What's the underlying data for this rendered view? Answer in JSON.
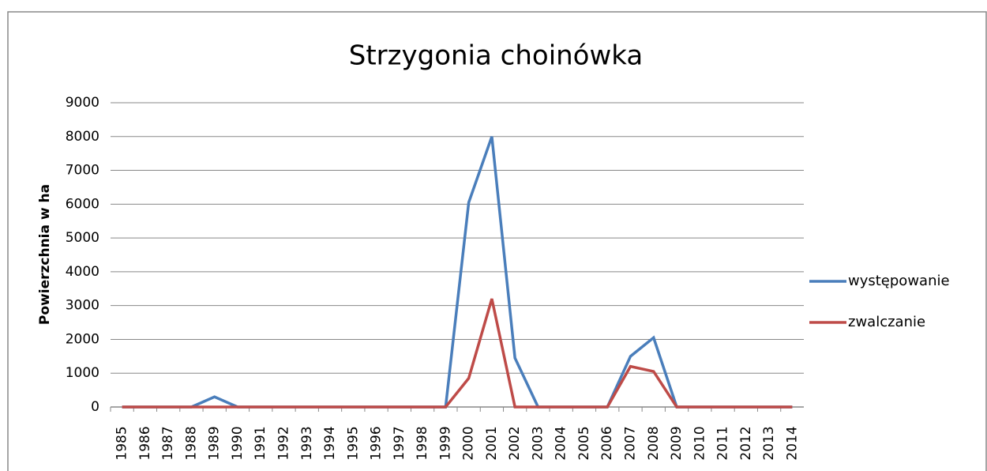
{
  "chart_data": {
    "type": "line",
    "title": "Strzygonia choinówka",
    "y_label": "Powierzchnia w ha",
    "categories": [
      "1985",
      "1986",
      "1987",
      "1988",
      "1989",
      "1990",
      "1991",
      "1992",
      "1993",
      "1994",
      "1995",
      "1996",
      "1997",
      "1998",
      "1999",
      "2000",
      "2001",
      "2002",
      "2003",
      "2004",
      "2005",
      "2006",
      "2007",
      "2008",
      "2009",
      "2010",
      "2011",
      "2012",
      "2013",
      "2014"
    ],
    "series": [
      {
        "name": "występowanie",
        "color": "#4a7ebb",
        "values": [
          0,
          0,
          0,
          0,
          300,
          0,
          0,
          0,
          0,
          0,
          0,
          0,
          0,
          0,
          0,
          6050,
          8000,
          1450,
          0,
          0,
          0,
          0,
          1500,
          2050,
          0,
          0,
          0,
          0,
          0,
          0
        ]
      },
      {
        "name": "zwalczanie",
        "color": "#be4b48",
        "values": [
          0,
          0,
          0,
          0,
          0,
          0,
          0,
          0,
          0,
          0,
          0,
          0,
          0,
          0,
          0,
          850,
          3200,
          0,
          0,
          0,
          0,
          0,
          1200,
          1050,
          0,
          0,
          0,
          0,
          0,
          0
        ]
      }
    ],
    "ylim": [
      0,
      9000
    ],
    "yticks": [
      0,
      1000,
      2000,
      3000,
      4000,
      5000,
      6000,
      7000,
      8000,
      9000
    ],
    "grid": true,
    "legend": "right"
  }
}
